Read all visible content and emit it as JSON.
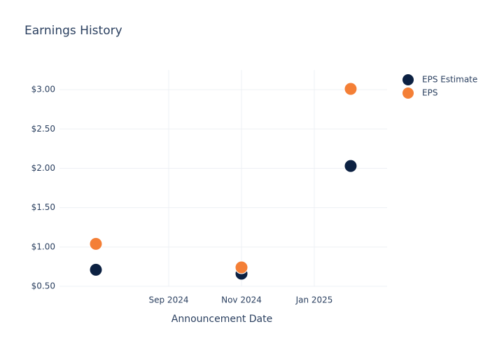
{
  "chart_data": {
    "type": "scatter",
    "title": "Earnings History",
    "x_label": "Announcement Date",
    "x": [
      "2024-07",
      "2024-11",
      "2025-02"
    ],
    "series": [
      {
        "name": "EPS Estimate",
        "color": "#0c2142",
        "values": [
          0.71,
          0.66,
          2.03
        ]
      },
      {
        "name": "EPS",
        "color": "#f47f36",
        "values": [
          1.04,
          0.74,
          3.01
        ]
      }
    ],
    "xlim": [
      "2024-06",
      "2025-03"
    ],
    "xticks": [
      {
        "value": "2024-09",
        "label": "Sep 2024"
      },
      {
        "value": "2024-11",
        "label": "Nov 2024"
      },
      {
        "value": "2025-01",
        "label": "Jan 2025"
      }
    ],
    "ylim": [
      0.5,
      3.25
    ],
    "yticks": [
      {
        "value": 0.5,
        "label": "$0.50"
      },
      {
        "value": 1,
        "label": "$1.00"
      },
      {
        "value": 1.5,
        "label": "$1.50"
      },
      {
        "value": 2,
        "label": "$2.00"
      },
      {
        "value": 2.5,
        "label": "$2.50"
      },
      {
        "value": 3,
        "label": "$3.00"
      }
    ],
    "grid": true,
    "legend": "top-right"
  }
}
